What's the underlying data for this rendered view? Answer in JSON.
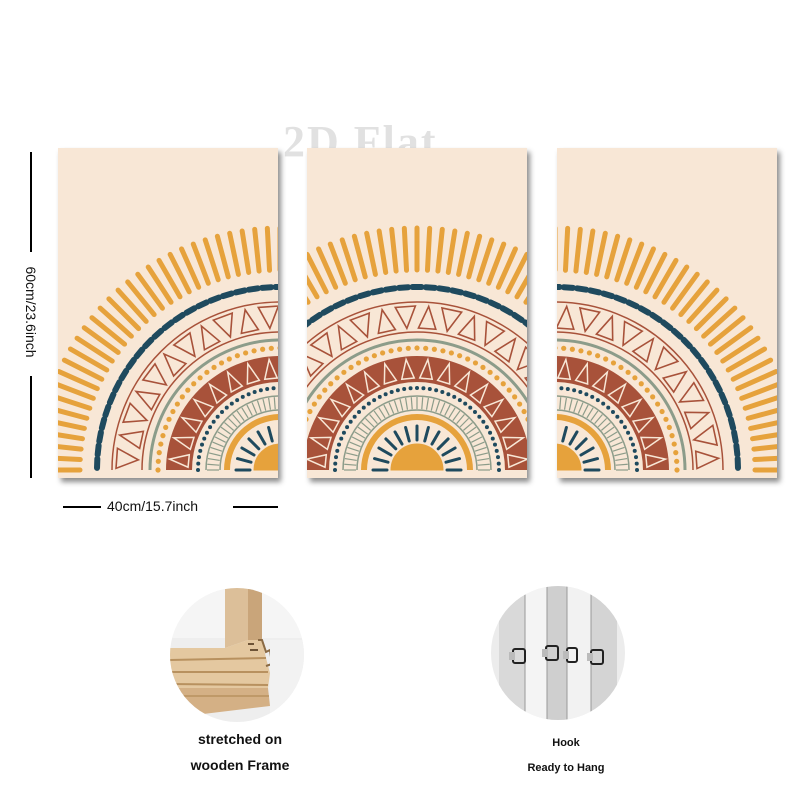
{
  "watermark": "2D Flat",
  "dimensions": {
    "height_label": "60cm/23.6inch",
    "width_label": "40cm/15.7inch"
  },
  "features": {
    "frame": {
      "icon": "wooden-frame-corner-photo",
      "caption_line1": "stretched on",
      "caption_line2": "wooden Frame"
    },
    "hook": {
      "icon": "hanging-hook-photo",
      "caption_line1": "Hook",
      "caption_line2": "Ready to Hang"
    }
  },
  "colors": {
    "background": "#ffffff",
    "canvas": "#f8e7d6",
    "mustard": "#e6a23c",
    "navy": "#1f4a5e",
    "terracotta": "#a8523a",
    "sage": "#8c9c8a",
    "wood": "#d9b78c"
  }
}
